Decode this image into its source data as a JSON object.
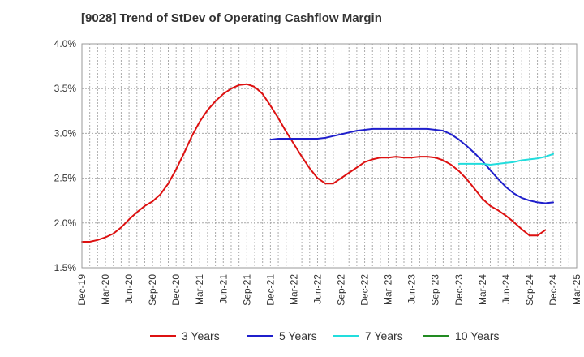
{
  "chart_data": {
    "type": "line",
    "title": "[9028]  Trend of StDev of Operating Cashflow Margin",
    "xlabel": "",
    "ylabel": "",
    "x_ticks": [
      "Dec-19",
      "Mar-20",
      "Jun-20",
      "Sep-20",
      "Dec-20",
      "Mar-21",
      "Jun-21",
      "Sep-21",
      "Dec-21",
      "Mar-22",
      "Jun-22",
      "Sep-22",
      "Dec-22",
      "Mar-23",
      "Jun-23",
      "Sep-23",
      "Dec-23",
      "Mar-24",
      "Jun-24",
      "Sep-24",
      "Dec-24",
      "Mar-25"
    ],
    "y_ticks": [
      "1.5%",
      "2.0%",
      "2.5%",
      "3.0%",
      "3.5%",
      "4.0%"
    ],
    "ylim": [
      1.5,
      4.0
    ],
    "y_unit": "%",
    "grid": true,
    "legend_position": "bottom",
    "series": [
      {
        "name": "3 Years",
        "color": "#dd1111",
        "x": [
          "2019-12",
          "2020-01",
          "2020-02",
          "2020-03",
          "2020-04",
          "2020-05",
          "2020-06",
          "2020-07",
          "2020-08",
          "2020-09",
          "2020-10",
          "2020-11",
          "2020-12",
          "2021-01",
          "2021-02",
          "2021-03",
          "2021-04",
          "2021-05",
          "2021-06",
          "2021-07",
          "2021-08",
          "2021-09",
          "2021-10",
          "2021-11",
          "2021-12",
          "2022-01",
          "2022-02",
          "2022-03",
          "2022-04",
          "2022-05",
          "2022-06",
          "2022-07",
          "2022-08",
          "2022-09",
          "2022-10",
          "2022-11",
          "2022-12",
          "2023-01",
          "2023-02",
          "2023-03",
          "2023-04",
          "2023-05",
          "2023-06",
          "2023-07",
          "2023-08",
          "2023-09",
          "2023-10",
          "2023-11",
          "2023-12",
          "2024-01",
          "2024-02",
          "2024-03",
          "2024-04",
          "2024-05",
          "2024-06",
          "2024-07",
          "2024-08",
          "2024-09",
          "2024-10",
          "2024-11",
          "2024-12"
        ],
        "values": [
          1.79,
          1.79,
          1.81,
          1.84,
          1.88,
          1.95,
          2.04,
          2.12,
          2.19,
          2.24,
          2.32,
          2.44,
          2.6,
          2.78,
          2.97,
          3.13,
          3.26,
          3.36,
          3.44,
          3.5,
          3.54,
          3.55,
          3.52,
          3.44,
          3.31,
          3.17,
          3.02,
          2.88,
          2.74,
          2.61,
          2.5,
          2.44,
          2.44,
          2.5,
          2.56,
          2.62,
          2.68,
          2.71,
          2.73,
          2.73,
          2.74,
          2.73,
          2.73,
          2.74,
          2.74,
          2.73,
          2.7,
          2.65,
          2.58,
          2.49,
          2.38,
          2.27,
          2.19,
          2.14,
          2.08,
          2.01,
          1.93,
          1.86,
          1.86,
          1.92,
          null
        ]
      },
      {
        "name": "5 Years",
        "color": "#1f1fcc",
        "x": [
          "2021-12",
          "2022-01",
          "2022-02",
          "2022-03",
          "2022-04",
          "2022-05",
          "2022-06",
          "2022-07",
          "2022-08",
          "2022-09",
          "2022-10",
          "2022-11",
          "2022-12",
          "2023-01",
          "2023-02",
          "2023-03",
          "2023-04",
          "2023-05",
          "2023-06",
          "2023-07",
          "2023-08",
          "2023-09",
          "2023-10",
          "2023-11",
          "2023-12",
          "2024-01",
          "2024-02",
          "2024-03",
          "2024-04",
          "2024-05",
          "2024-06",
          "2024-07",
          "2024-08",
          "2024-09",
          "2024-10",
          "2024-11",
          "2024-12"
        ],
        "values": [
          2.93,
          2.94,
          2.94,
          2.94,
          2.94,
          2.94,
          2.94,
          2.95,
          2.97,
          2.99,
          3.01,
          3.03,
          3.04,
          3.05,
          3.05,
          3.05,
          3.05,
          3.05,
          3.05,
          3.05,
          3.05,
          3.04,
          3.03,
          2.99,
          2.93,
          2.86,
          2.78,
          2.69,
          2.59,
          2.49,
          2.4,
          2.33,
          2.28,
          2.25,
          2.23,
          2.22,
          2.23
        ]
      },
      {
        "name": "7 Years",
        "color": "#22dddd",
        "x": [
          "2023-12",
          "2024-01",
          "2024-02",
          "2024-03",
          "2024-04",
          "2024-05",
          "2024-06",
          "2024-07",
          "2024-08",
          "2024-09",
          "2024-10",
          "2024-11",
          "2024-12"
        ],
        "values": [
          2.66,
          2.66,
          2.66,
          2.66,
          2.65,
          2.66,
          2.67,
          2.68,
          2.7,
          2.71,
          2.72,
          2.74,
          2.77
        ]
      },
      {
        "name": "10 Years",
        "color": "#228b22",
        "x": [],
        "values": []
      }
    ]
  }
}
